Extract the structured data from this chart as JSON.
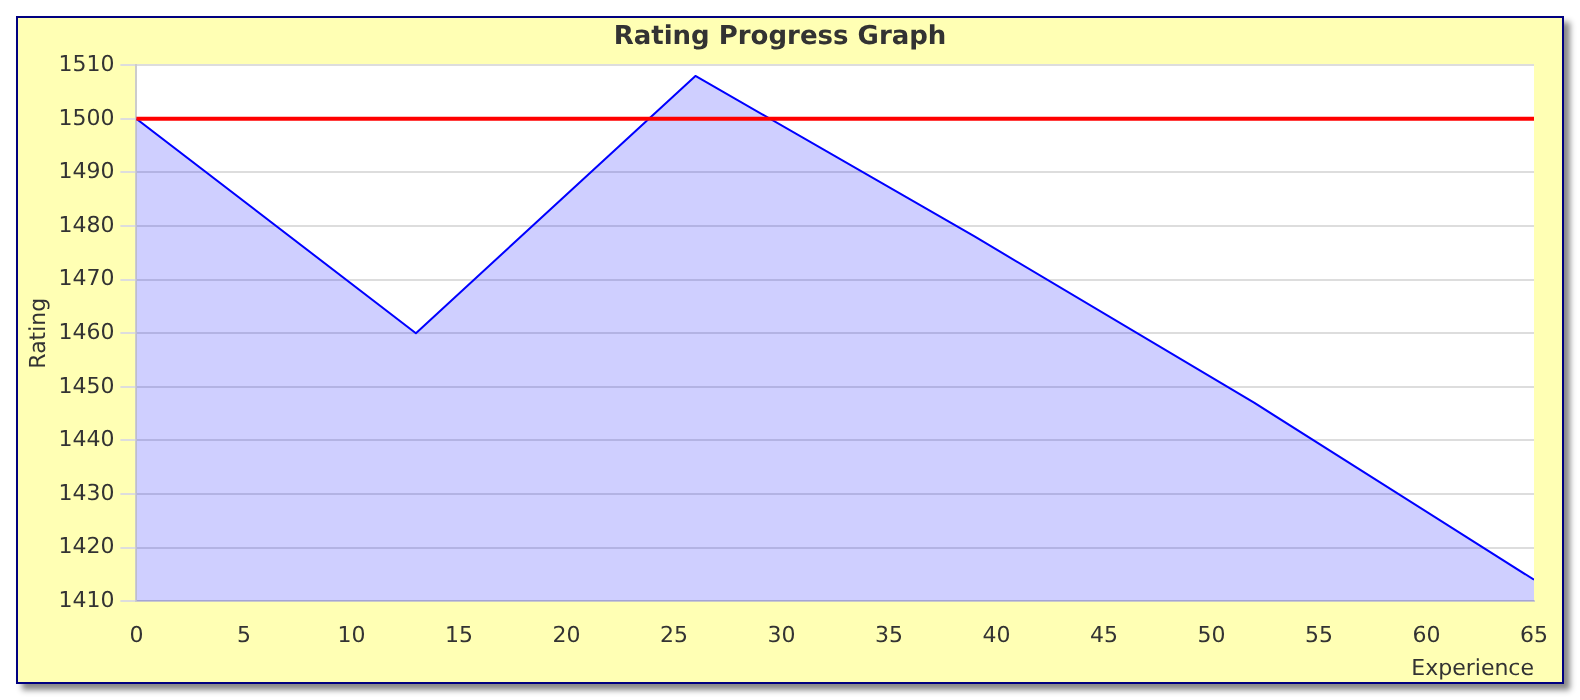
{
  "chart_data": {
    "type": "area",
    "title": "Rating Progress Graph",
    "xlabel": "Experience",
    "ylabel": "Rating",
    "x": [
      0,
      13,
      26,
      39,
      52,
      65
    ],
    "series": [
      {
        "color": "#0000ff",
        "values": [
          1500,
          1460,
          1508,
          1478,
          1447,
          1414
        ]
      }
    ],
    "xlim": [
      0,
      65
    ],
    "xticks": [
      0,
      5,
      10,
      15,
      20,
      25,
      30,
      35,
      40,
      45,
      50,
      55,
      60,
      65
    ],
    "ylim": [
      1410,
      1510
    ],
    "yticks": [
      1410,
      1420,
      1430,
      1440,
      1450,
      1460,
      1470,
      1480,
      1490,
      1500,
      1510
    ],
    "ref_lines": [
      {
        "axis": "y",
        "value": 1500,
        "color": "#ff0000"
      }
    ],
    "grid": "y",
    "legend": false,
    "marker": "none"
  }
}
